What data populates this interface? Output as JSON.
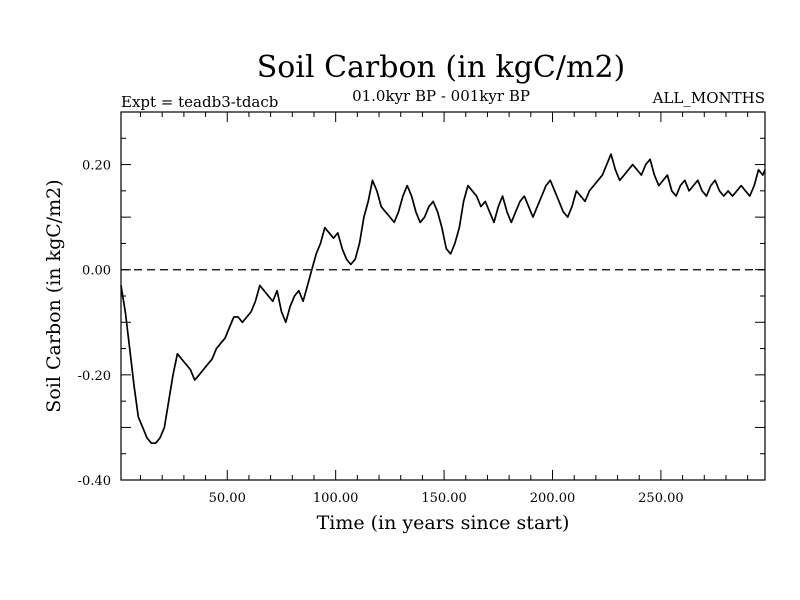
{
  "chart_data": {
    "type": "line",
    "title": "Soil Carbon (in kgC/m2)",
    "left_note": "Expt = teadb3-tdacb",
    "center_note": "01.0kyr BP - 001kyr BP",
    "right_note": "ALL_MONTHS",
    "xlabel": "Time (in years since start)",
    "ylabel": "Soil Carbon (in kgC/m2)",
    "xlim": [
      1,
      298
    ],
    "ylim": [
      -0.4,
      0.3
    ],
    "xticks": [
      {
        "value": 50,
        "label": "50.00"
      },
      {
        "value": 100,
        "label": "100.00"
      },
      {
        "value": 150,
        "label": "150.00"
      },
      {
        "value": 200,
        "label": "200.00"
      },
      {
        "value": 250,
        "label": "250.00"
      }
    ],
    "yticks": [
      {
        "value": 0.2,
        "label": "0.20"
      },
      {
        "value": 0.0,
        "label": "0.00"
      },
      {
        "value": -0.2,
        "label": "-0.20"
      },
      {
        "value": -0.4,
        "label": "-0.40"
      }
    ],
    "reference_line": {
      "value": 0.0,
      "style": "dashed"
    },
    "grid": false,
    "series": [
      {
        "x": [
          1,
          3,
          5,
          7,
          9,
          11,
          13,
          15,
          17,
          19,
          21,
          23,
          25,
          27,
          29,
          31,
          33,
          35,
          37,
          39,
          41,
          43,
          45,
          47,
          49,
          51,
          53,
          55,
          57,
          59,
          61,
          63,
          65,
          67,
          69,
          71,
          73,
          75,
          77,
          79,
          81,
          83,
          85,
          87,
          89,
          91,
          93,
          95,
          97,
          99,
          101,
          103,
          105,
          107,
          109,
          111,
          113,
          115,
          117,
          119,
          121,
          123,
          125,
          127,
          129,
          131,
          133,
          135,
          137,
          139,
          141,
          143,
          145,
          147,
          149,
          151,
          153,
          155,
          157,
          159,
          161,
          163,
          165,
          167,
          169,
          171,
          173,
          175,
          177,
          179,
          181,
          183,
          185,
          187,
          189,
          191,
          193,
          195,
          197,
          199,
          201,
          203,
          205,
          207,
          209,
          211,
          213,
          215,
          217,
          219,
          221,
          223,
          225,
          227,
          229,
          231,
          233,
          235,
          237,
          239,
          241,
          243,
          245,
          247,
          249,
          251,
          253,
          255,
          257,
          259,
          261,
          263,
          265,
          267,
          269,
          271,
          273,
          275,
          277,
          279,
          281,
          283,
          285,
          287,
          289,
          291,
          293,
          295,
          297,
          298
        ],
        "y": [
          -0.03,
          -0.08,
          -0.15,
          -0.22,
          -0.28,
          -0.3,
          -0.32,
          -0.33,
          -0.33,
          -0.32,
          -0.3,
          -0.25,
          -0.2,
          -0.16,
          -0.17,
          -0.18,
          -0.19,
          -0.21,
          -0.2,
          -0.19,
          -0.18,
          -0.17,
          -0.15,
          -0.14,
          -0.13,
          -0.11,
          -0.09,
          -0.09,
          -0.1,
          -0.09,
          -0.08,
          -0.06,
          -0.03,
          -0.04,
          -0.05,
          -0.06,
          -0.04,
          -0.08,
          -0.1,
          -0.07,
          -0.05,
          -0.04,
          -0.06,
          -0.03,
          0.0,
          0.03,
          0.05,
          0.08,
          0.07,
          0.06,
          0.07,
          0.04,
          0.02,
          0.01,
          0.02,
          0.05,
          0.1,
          0.13,
          0.17,
          0.15,
          0.12,
          0.11,
          0.1,
          0.09,
          0.11,
          0.14,
          0.16,
          0.14,
          0.11,
          0.09,
          0.1,
          0.12,
          0.13,
          0.11,
          0.08,
          0.04,
          0.03,
          0.05,
          0.08,
          0.13,
          0.16,
          0.15,
          0.14,
          0.12,
          0.13,
          0.11,
          0.09,
          0.12,
          0.14,
          0.11,
          0.09,
          0.11,
          0.13,
          0.14,
          0.12,
          0.1,
          0.12,
          0.14,
          0.16,
          0.17,
          0.15,
          0.13,
          0.11,
          0.1,
          0.12,
          0.15,
          0.14,
          0.13,
          0.15,
          0.16,
          0.17,
          0.18,
          0.2,
          0.22,
          0.19,
          0.17,
          0.18,
          0.19,
          0.2,
          0.19,
          0.18,
          0.2,
          0.21,
          0.18,
          0.16,
          0.17,
          0.18,
          0.15,
          0.14,
          0.16,
          0.17,
          0.15,
          0.16,
          0.17,
          0.15,
          0.14,
          0.16,
          0.17,
          0.15,
          0.14,
          0.15,
          0.14,
          0.15,
          0.16,
          0.15,
          0.14,
          0.16,
          0.19,
          0.18,
          0.19
        ]
      }
    ]
  }
}
